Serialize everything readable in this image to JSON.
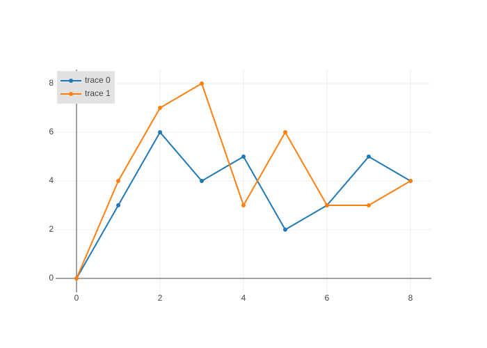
{
  "chart_data": {
    "type": "line",
    "x": [
      0,
      1,
      2,
      3,
      4,
      5,
      6,
      7,
      8
    ],
    "series": [
      {
        "name": "trace 0",
        "color": "#1f77b4",
        "values": [
          0,
          3,
          6,
          4,
          5,
          2,
          3,
          5,
          4
        ]
      },
      {
        "name": "trace 1",
        "color": "#ff7f0e",
        "values": [
          0,
          4,
          7,
          8,
          3,
          6,
          3,
          3,
          4
        ]
      }
    ],
    "xlim": [
      -0.5,
      8.5
    ],
    "xticks": [
      0,
      2,
      4,
      6,
      8
    ],
    "ylim": [
      -0.57,
      8.57
    ],
    "yticks": [
      0,
      2,
      4,
      6,
      8
    ],
    "grid": true,
    "legend": "top-left"
  }
}
